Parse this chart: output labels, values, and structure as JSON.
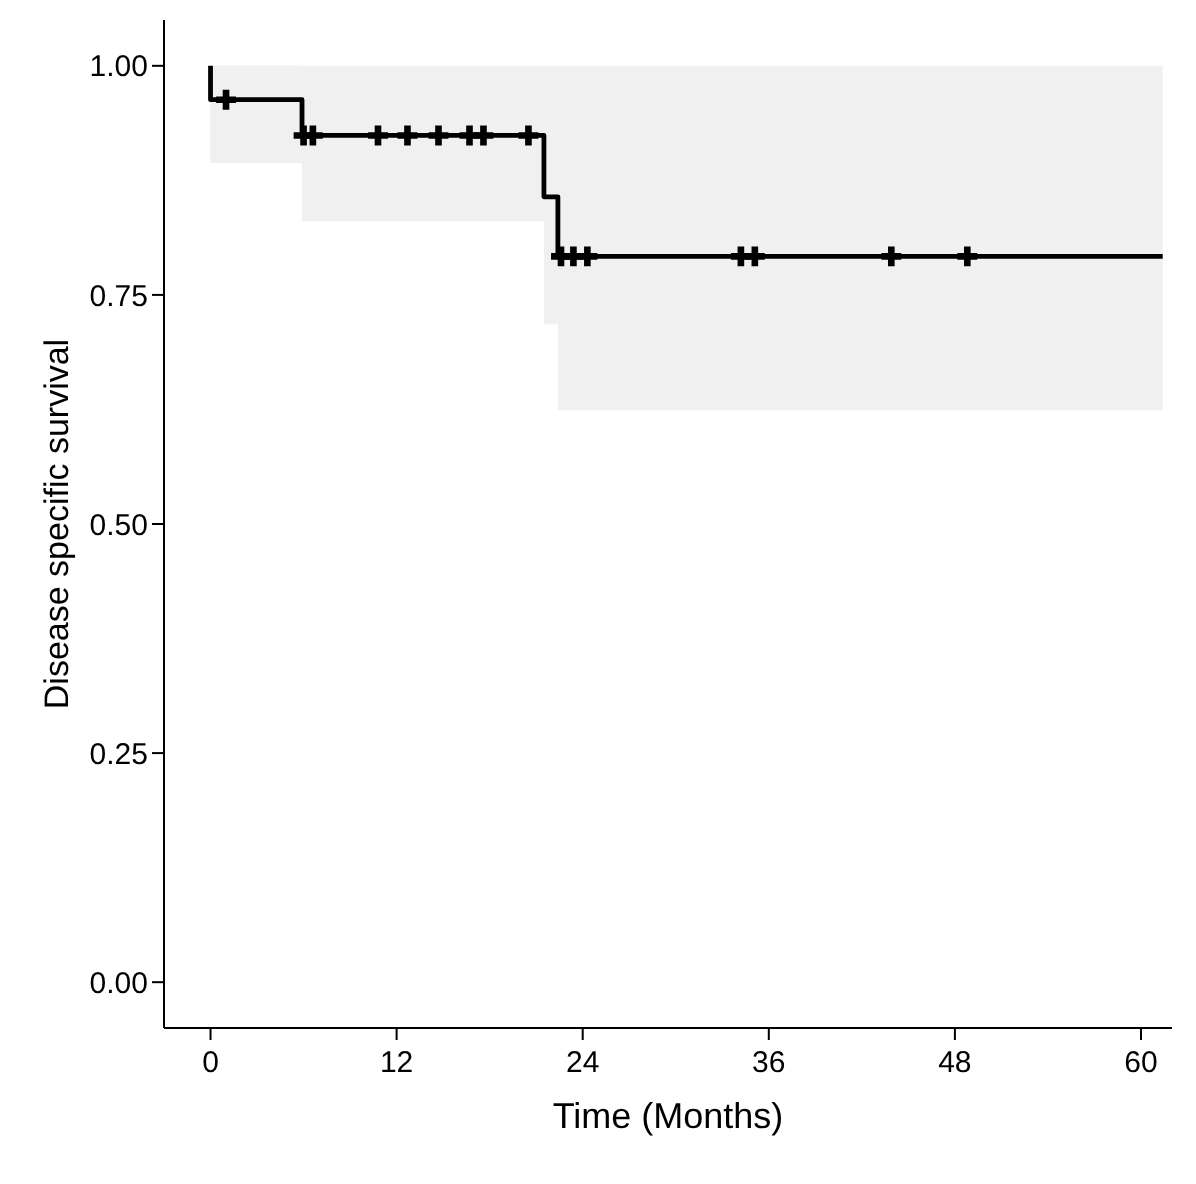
{
  "chart_data": {
    "type": "step",
    "xlabel": "Time (Months)",
    "ylabel": "Disease specific survival",
    "xlim": [
      -3,
      62
    ],
    "xticks": [
      0,
      12,
      24,
      36,
      48,
      60
    ],
    "ylim": [
      -0.05,
      1.05
    ],
    "yticks": [
      {
        "value": 0,
        "label": "0.00"
      },
      {
        "value": 0.25,
        "label": "0.25"
      },
      {
        "value": 0.5,
        "label": "0.50"
      },
      {
        "value": 0.75,
        "label": "0.75"
      },
      {
        "value": 1,
        "label": "1.00"
      }
    ],
    "grid": false,
    "legend": false,
    "series": [
      {
        "color": "#000000",
        "x": [
          0,
          0,
          5.9,
          21.5,
          22.4,
          61.4
        ],
        "values": [
          1,
          0.963,
          0.924,
          0.857,
          0.792,
          0.792
        ],
        "lower": [
          0.894,
          0.894,
          0.83,
          0.718,
          0.624,
          0.624
        ],
        "upper": [
          1,
          1,
          1,
          1,
          1,
          1
        ]
      },
      {
        "type": "scatter",
        "color": "#000000",
        "marker": "cross",
        "x": [
          1,
          6,
          6.6,
          10.8,
          12.7,
          14.7,
          16.7,
          17.6,
          20.5,
          22.6,
          23.4,
          24.3,
          34.2,
          35.1,
          43.9,
          48.8
        ],
        "values": [
          0.963,
          0.924,
          0.924,
          0.924,
          0.924,
          0.924,
          0.924,
          0.924,
          0.924,
          0.792,
          0.792,
          0.792,
          0.792,
          0.792,
          0.792,
          0.792
        ]
      }
    ]
  }
}
